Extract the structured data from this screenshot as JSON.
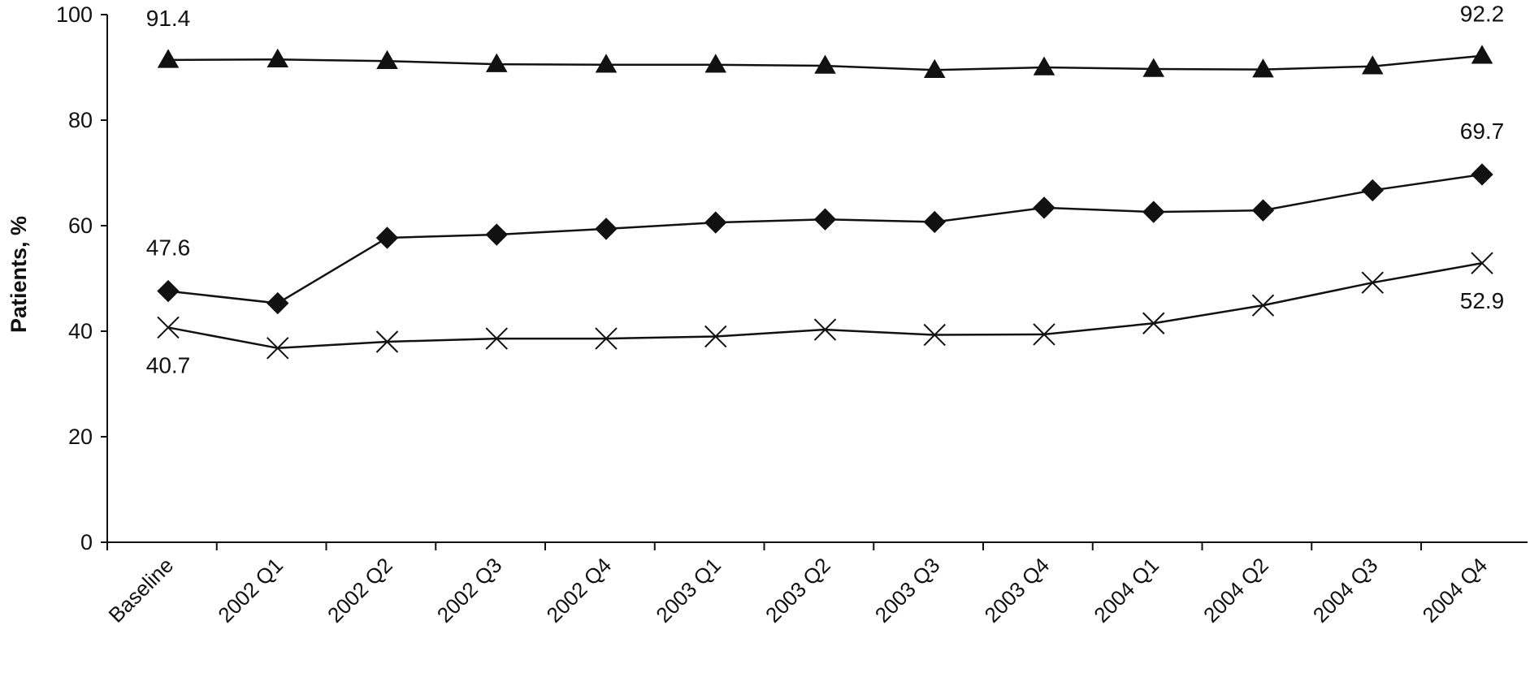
{
  "chart_data": {
    "type": "line",
    "title": "",
    "xlabel": "",
    "ylabel": "Patients, %",
    "ylim": [
      0,
      100
    ],
    "yticks": [
      0,
      20,
      40,
      60,
      80,
      100
    ],
    "grid": false,
    "legend": "none",
    "categories": [
      "Baseline",
      "2002 Q1",
      "2002 Q2",
      "2002 Q3",
      "2002 Q4",
      "2003 Q1",
      "2003 Q2",
      "2003 Q3",
      "2003 Q4",
      "2004 Q1",
      "2004 Q2",
      "2004 Q3",
      "2004 Q4"
    ],
    "series": [
      {
        "marker": "triangle",
        "color": "#111111",
        "values": [
          91.4,
          91.5,
          91.2,
          90.6,
          90.5,
          90.5,
          90.3,
          89.5,
          90.0,
          89.7,
          89.6,
          90.2,
          92.2
        ]
      },
      {
        "marker": "diamond",
        "color": "#111111",
        "values": [
          47.6,
          45.3,
          57.7,
          58.3,
          59.4,
          60.6,
          61.2,
          60.7,
          63.4,
          62.6,
          62.9,
          66.7,
          69.7
        ]
      },
      {
        "marker": "x",
        "color": "#111111",
        "values": [
          40.7,
          36.8,
          38.0,
          38.6,
          38.6,
          39.0,
          40.3,
          39.3,
          39.4,
          41.5,
          44.9,
          49.2,
          52.9
        ]
      }
    ],
    "annotations": [
      {
        "series": 0,
        "index": 0,
        "text": "91.4"
      },
      {
        "series": 0,
        "index": 12,
        "text": "92.2"
      },
      {
        "series": 1,
        "index": 0,
        "text": "47.6"
      },
      {
        "series": 1,
        "index": 12,
        "text": "69.7"
      },
      {
        "series": 2,
        "index": 0,
        "text": "40.7"
      },
      {
        "series": 2,
        "index": 12,
        "text": "52.9"
      }
    ]
  }
}
